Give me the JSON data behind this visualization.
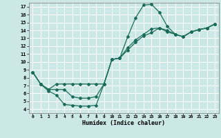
{
  "xlabel": "Humidex (Indice chaleur)",
  "bg_color": "#cce8e6",
  "grid_color": "#ffffff",
  "line_color": "#1a6b5a",
  "marker": "D",
  "markersize": 2.0,
  "linewidth": 0.9,
  "xlim": [
    -0.5,
    23.5
  ],
  "ylim": [
    3.5,
    17.5
  ],
  "xticks": [
    0,
    1,
    2,
    3,
    4,
    5,
    6,
    7,
    8,
    9,
    10,
    11,
    12,
    13,
    14,
    15,
    16,
    17,
    18,
    19,
    20,
    21,
    22,
    23
  ],
  "yticks": [
    4,
    5,
    6,
    7,
    8,
    9,
    10,
    11,
    12,
    13,
    14,
    15,
    16,
    17
  ],
  "series": [
    {
      "x": [
        0,
        1,
        2,
        3,
        4,
        5,
        6,
        7,
        8,
        9,
        10,
        11,
        12,
        13,
        14,
        15,
        16,
        17,
        18,
        19,
        20,
        21,
        22,
        23
      ],
      "y": [
        8.7,
        7.2,
        6.3,
        5.8,
        4.6,
        4.5,
        4.4,
        4.4,
        4.5,
        7.2,
        10.3,
        10.5,
        13.2,
        15.6,
        17.2,
        17.3,
        16.3,
        14.5,
        13.5,
        13.2,
        13.8,
        14.1,
        14.3,
        14.8
      ]
    },
    {
      "x": [
        0,
        1,
        2,
        3,
        4,
        5,
        6,
        7,
        8,
        9,
        10,
        11,
        12,
        13,
        14,
        15,
        16,
        17,
        18,
        19,
        20,
        21,
        22,
        23
      ],
      "y": [
        8.7,
        7.2,
        6.5,
        7.2,
        7.2,
        7.2,
        7.2,
        7.2,
        7.2,
        7.2,
        10.3,
        10.5,
        11.5,
        12.5,
        13.3,
        13.7,
        14.3,
        13.8,
        13.5,
        13.2,
        13.8,
        14.1,
        14.3,
        14.8
      ]
    },
    {
      "x": [
        0,
        1,
        2,
        3,
        4,
        5,
        6,
        7,
        8,
        9,
        10,
        11,
        12,
        13,
        14,
        15,
        16,
        17,
        18,
        19,
        20,
        21,
        22,
        23
      ],
      "y": [
        8.7,
        7.2,
        6.5,
        6.5,
        6.5,
        5.6,
        5.4,
        5.4,
        5.6,
        7.2,
        10.3,
        10.5,
        11.8,
        12.8,
        13.5,
        14.2,
        14.3,
        14.0,
        13.5,
        13.2,
        13.8,
        14.1,
        14.3,
        14.8
      ]
    }
  ]
}
